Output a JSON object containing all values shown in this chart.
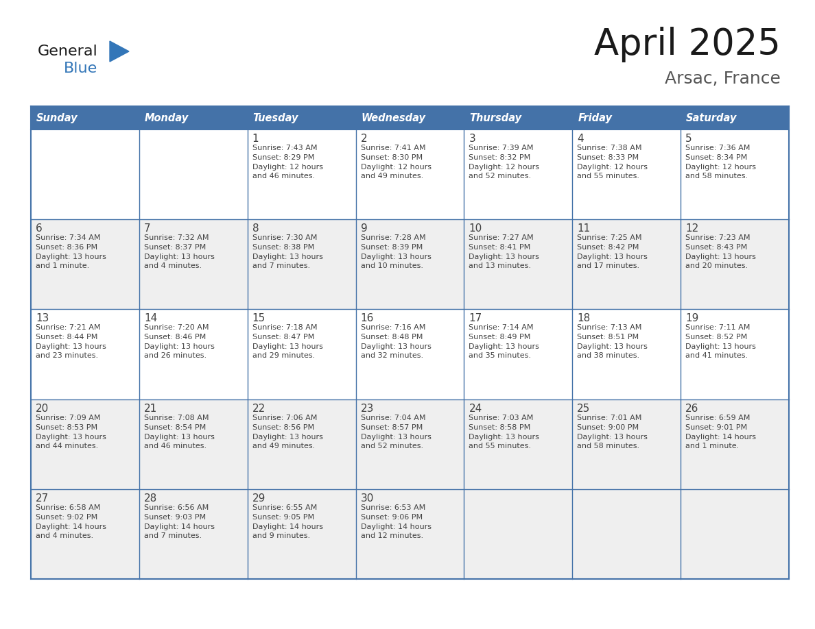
{
  "title": "April 2025",
  "subtitle": "Arsac, France",
  "header_color": "#4472A8",
  "header_text_color": "#FFFFFF",
  "cell_bg_white": "#FFFFFF",
  "cell_bg_gray": "#EFEFEF",
  "border_color": "#4472A8",
  "text_color": "#404040",
  "logo_general_color": "#1a1a1a",
  "logo_blue_color": "#3376B8",
  "logo_triangle_color": "#3376B8",
  "title_color": "#1a1a1a",
  "subtitle_color": "#555555",
  "days_of_week": [
    "Sunday",
    "Monday",
    "Tuesday",
    "Wednesday",
    "Thursday",
    "Friday",
    "Saturday"
  ],
  "weeks": [
    [
      {
        "day": "",
        "sunrise": "",
        "sunset": "",
        "daylight": ""
      },
      {
        "day": "",
        "sunrise": "",
        "sunset": "",
        "daylight": ""
      },
      {
        "day": "1",
        "sunrise": "Sunrise: 7:43 AM",
        "sunset": "Sunset: 8:29 PM",
        "daylight": "Daylight: 12 hours\nand 46 minutes."
      },
      {
        "day": "2",
        "sunrise": "Sunrise: 7:41 AM",
        "sunset": "Sunset: 8:30 PM",
        "daylight": "Daylight: 12 hours\nand 49 minutes."
      },
      {
        "day": "3",
        "sunrise": "Sunrise: 7:39 AM",
        "sunset": "Sunset: 8:32 PM",
        "daylight": "Daylight: 12 hours\nand 52 minutes."
      },
      {
        "day": "4",
        "sunrise": "Sunrise: 7:38 AM",
        "sunset": "Sunset: 8:33 PM",
        "daylight": "Daylight: 12 hours\nand 55 minutes."
      },
      {
        "day": "5",
        "sunrise": "Sunrise: 7:36 AM",
        "sunset": "Sunset: 8:34 PM",
        "daylight": "Daylight: 12 hours\nand 58 minutes."
      }
    ],
    [
      {
        "day": "6",
        "sunrise": "Sunrise: 7:34 AM",
        "sunset": "Sunset: 8:36 PM",
        "daylight": "Daylight: 13 hours\nand 1 minute."
      },
      {
        "day": "7",
        "sunrise": "Sunrise: 7:32 AM",
        "sunset": "Sunset: 8:37 PM",
        "daylight": "Daylight: 13 hours\nand 4 minutes."
      },
      {
        "day": "8",
        "sunrise": "Sunrise: 7:30 AM",
        "sunset": "Sunset: 8:38 PM",
        "daylight": "Daylight: 13 hours\nand 7 minutes."
      },
      {
        "day": "9",
        "sunrise": "Sunrise: 7:28 AM",
        "sunset": "Sunset: 8:39 PM",
        "daylight": "Daylight: 13 hours\nand 10 minutes."
      },
      {
        "day": "10",
        "sunrise": "Sunrise: 7:27 AM",
        "sunset": "Sunset: 8:41 PM",
        "daylight": "Daylight: 13 hours\nand 13 minutes."
      },
      {
        "day": "11",
        "sunrise": "Sunrise: 7:25 AM",
        "sunset": "Sunset: 8:42 PM",
        "daylight": "Daylight: 13 hours\nand 17 minutes."
      },
      {
        "day": "12",
        "sunrise": "Sunrise: 7:23 AM",
        "sunset": "Sunset: 8:43 PM",
        "daylight": "Daylight: 13 hours\nand 20 minutes."
      }
    ],
    [
      {
        "day": "13",
        "sunrise": "Sunrise: 7:21 AM",
        "sunset": "Sunset: 8:44 PM",
        "daylight": "Daylight: 13 hours\nand 23 minutes."
      },
      {
        "day": "14",
        "sunrise": "Sunrise: 7:20 AM",
        "sunset": "Sunset: 8:46 PM",
        "daylight": "Daylight: 13 hours\nand 26 minutes."
      },
      {
        "day": "15",
        "sunrise": "Sunrise: 7:18 AM",
        "sunset": "Sunset: 8:47 PM",
        "daylight": "Daylight: 13 hours\nand 29 minutes."
      },
      {
        "day": "16",
        "sunrise": "Sunrise: 7:16 AM",
        "sunset": "Sunset: 8:48 PM",
        "daylight": "Daylight: 13 hours\nand 32 minutes."
      },
      {
        "day": "17",
        "sunrise": "Sunrise: 7:14 AM",
        "sunset": "Sunset: 8:49 PM",
        "daylight": "Daylight: 13 hours\nand 35 minutes."
      },
      {
        "day": "18",
        "sunrise": "Sunrise: 7:13 AM",
        "sunset": "Sunset: 8:51 PM",
        "daylight": "Daylight: 13 hours\nand 38 minutes."
      },
      {
        "day": "19",
        "sunrise": "Sunrise: 7:11 AM",
        "sunset": "Sunset: 8:52 PM",
        "daylight": "Daylight: 13 hours\nand 41 minutes."
      }
    ],
    [
      {
        "day": "20",
        "sunrise": "Sunrise: 7:09 AM",
        "sunset": "Sunset: 8:53 PM",
        "daylight": "Daylight: 13 hours\nand 44 minutes."
      },
      {
        "day": "21",
        "sunrise": "Sunrise: 7:08 AM",
        "sunset": "Sunset: 8:54 PM",
        "daylight": "Daylight: 13 hours\nand 46 minutes."
      },
      {
        "day": "22",
        "sunrise": "Sunrise: 7:06 AM",
        "sunset": "Sunset: 8:56 PM",
        "daylight": "Daylight: 13 hours\nand 49 minutes."
      },
      {
        "day": "23",
        "sunrise": "Sunrise: 7:04 AM",
        "sunset": "Sunset: 8:57 PM",
        "daylight": "Daylight: 13 hours\nand 52 minutes."
      },
      {
        "day": "24",
        "sunrise": "Sunrise: 7:03 AM",
        "sunset": "Sunset: 8:58 PM",
        "daylight": "Daylight: 13 hours\nand 55 minutes."
      },
      {
        "day": "25",
        "sunrise": "Sunrise: 7:01 AM",
        "sunset": "Sunset: 9:00 PM",
        "daylight": "Daylight: 13 hours\nand 58 minutes."
      },
      {
        "day": "26",
        "sunrise": "Sunrise: 6:59 AM",
        "sunset": "Sunset: 9:01 PM",
        "daylight": "Daylight: 14 hours\nand 1 minute."
      }
    ],
    [
      {
        "day": "27",
        "sunrise": "Sunrise: 6:58 AM",
        "sunset": "Sunset: 9:02 PM",
        "daylight": "Daylight: 14 hours\nand 4 minutes."
      },
      {
        "day": "28",
        "sunrise": "Sunrise: 6:56 AM",
        "sunset": "Sunset: 9:03 PM",
        "daylight": "Daylight: 14 hours\nand 7 minutes."
      },
      {
        "day": "29",
        "sunrise": "Sunrise: 6:55 AM",
        "sunset": "Sunset: 9:05 PM",
        "daylight": "Daylight: 14 hours\nand 9 minutes."
      },
      {
        "day": "30",
        "sunrise": "Sunrise: 6:53 AM",
        "sunset": "Sunset: 9:06 PM",
        "daylight": "Daylight: 14 hours\nand 12 minutes."
      },
      {
        "day": "",
        "sunrise": "",
        "sunset": "",
        "daylight": ""
      },
      {
        "day": "",
        "sunrise": "",
        "sunset": "",
        "daylight": ""
      },
      {
        "day": "",
        "sunrise": "",
        "sunset": "",
        "daylight": ""
      }
    ]
  ],
  "row_bg_colors": [
    "#FFFFFF",
    "#EFEFEF",
    "#FFFFFF",
    "#EFEFEF",
    "#EFEFEF"
  ]
}
